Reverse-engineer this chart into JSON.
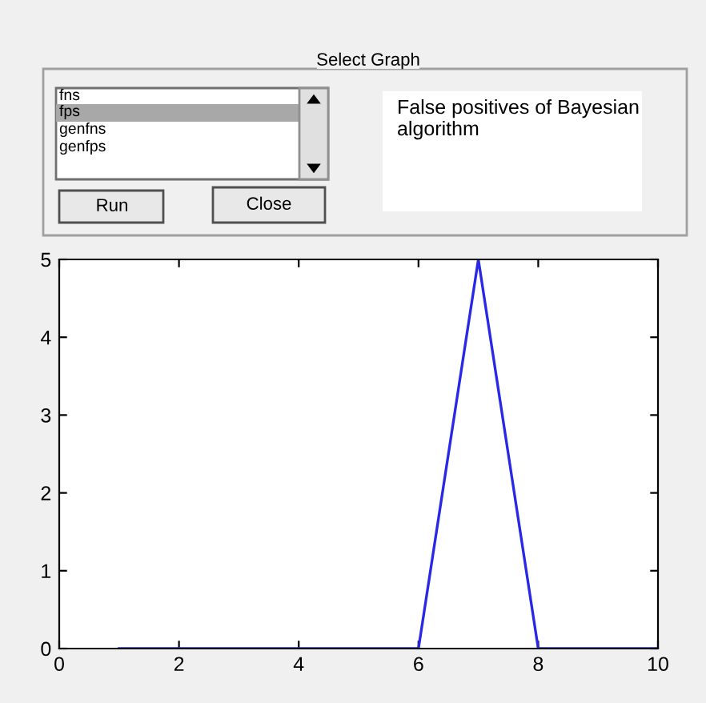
{
  "chart_data": {
    "type": "line",
    "title": "False positives of Bayesian algorithm",
    "annotations": [
      "Select Graph",
      "fns",
      "fps",
      "genfns",
      "genfps",
      "Run",
      "Close"
    ],
    "x": [
      1,
      2,
      3,
      4,
      5,
      6,
      7,
      8,
      9,
      10
    ],
    "series": [
      {
        "color": "#2828e6",
        "values": [
          0,
          0,
          0,
          0,
          0,
          0,
          5,
          0,
          0,
          0
        ]
      }
    ],
    "xlim": [
      0,
      10
    ],
    "xticks": [
      0,
      2,
      4,
      6,
      8,
      10
    ],
    "ylim": [
      0,
      5
    ],
    "yticks": [
      0,
      1,
      2,
      3,
      4,
      5
    ],
    "grid": false,
    "legend": false,
    "marker": "none",
    "line_style": "solid"
  }
}
